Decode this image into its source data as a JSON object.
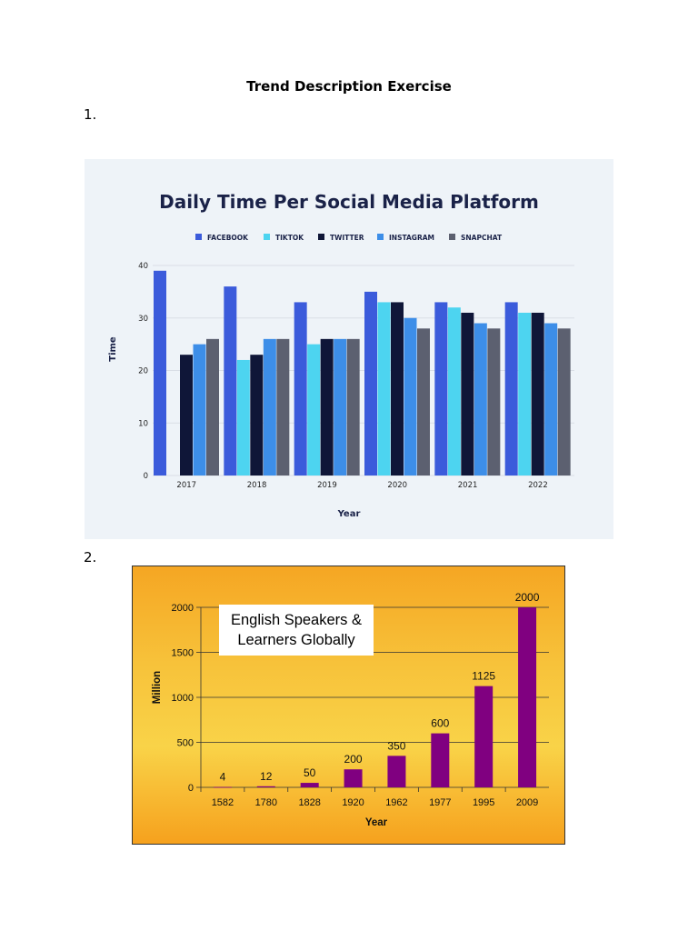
{
  "document": {
    "title": "Trend Description Exercise",
    "item1_number": "1.",
    "item2_number": "2."
  },
  "chart_data": [
    {
      "type": "bar",
      "title": "Daily Time Per Social Media Platform",
      "xlabel": "Year",
      "ylabel": "Time",
      "ylim": [
        0,
        40
      ],
      "yticks": [
        0,
        10,
        20,
        30,
        40
      ],
      "grid": true,
      "legend_placement": "top",
      "categories": [
        "2017",
        "2018",
        "2019",
        "2020",
        "2021",
        "2022"
      ],
      "series": [
        {
          "name": "FACEBOOK",
          "color": "#3b5bdb",
          "values": [
            39,
            36,
            33,
            35,
            33,
            33
          ]
        },
        {
          "name": "TIKTOK",
          "color": "#4dd4f0",
          "values": [
            0,
            22,
            25,
            33,
            32,
            31
          ]
        },
        {
          "name": "TWITTER",
          "color": "#0f1638",
          "values": [
            23,
            23,
            26,
            33,
            31,
            31
          ]
        },
        {
          "name": "INSTAGRAM",
          "color": "#3d8ee8",
          "values": [
            25,
            26,
            26,
            30,
            29,
            29
          ]
        },
        {
          "name": "SNAPCHAT",
          "color": "#5c6070",
          "values": [
            26,
            26,
            26,
            28,
            28,
            28
          ]
        }
      ]
    },
    {
      "type": "bar",
      "title": "English Speakers & Learners Globally",
      "xlabel": "Year",
      "ylabel": "Million",
      "ylim": [
        0,
        2000
      ],
      "yticks": [
        0,
        500,
        1000,
        1500,
        2000
      ],
      "grid": true,
      "bar_color": "#800080",
      "categories": [
        "1582",
        "1780",
        "1828",
        "1920",
        "1962",
        "1977",
        "1995",
        "2009"
      ],
      "values": [
        4,
        12,
        50,
        200,
        350,
        600,
        1125,
        2000
      ],
      "data_labels": [
        "4",
        "12",
        "50",
        "200",
        "350",
        "600",
        "1125",
        "2000"
      ]
    }
  ]
}
